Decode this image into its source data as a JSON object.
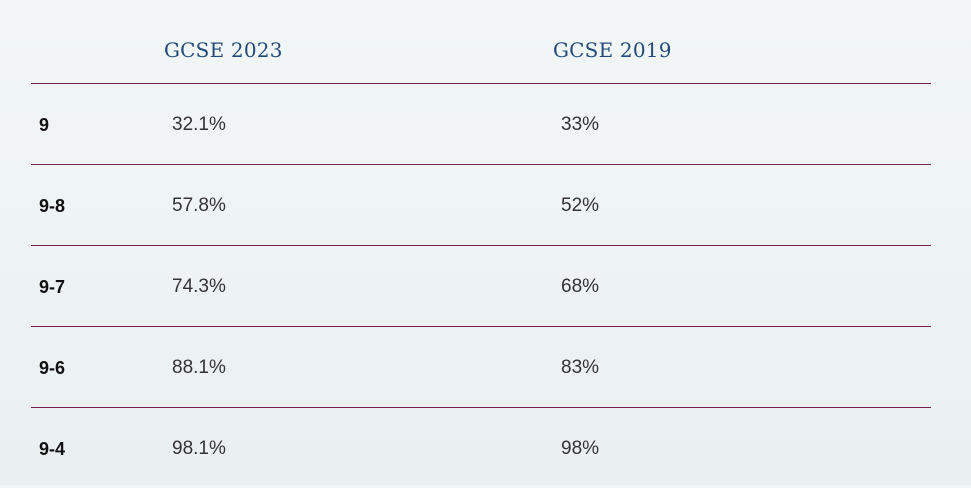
{
  "table": {
    "headers": [
      "",
      "GCSE 2023",
      "GCSE 2019"
    ],
    "rows": [
      {
        "grade": "9",
        "gcse_2023": "32.1%",
        "gcse_2019": "33%"
      },
      {
        "grade": "9-8",
        "gcse_2023": "57.8%",
        "gcse_2019": "52%"
      },
      {
        "grade": "9-7",
        "gcse_2023": "74.3%",
        "gcse_2019": "68%"
      },
      {
        "grade": "9-6",
        "gcse_2023": "88.1%",
        "gcse_2019": "83%"
      },
      {
        "grade": "9-4",
        "gcse_2023": "98.1%",
        "gcse_2019": "98%"
      }
    ]
  },
  "colors": {
    "header_text": "#234a78",
    "divider": "#7a1f4e",
    "body_text": "#333333"
  }
}
